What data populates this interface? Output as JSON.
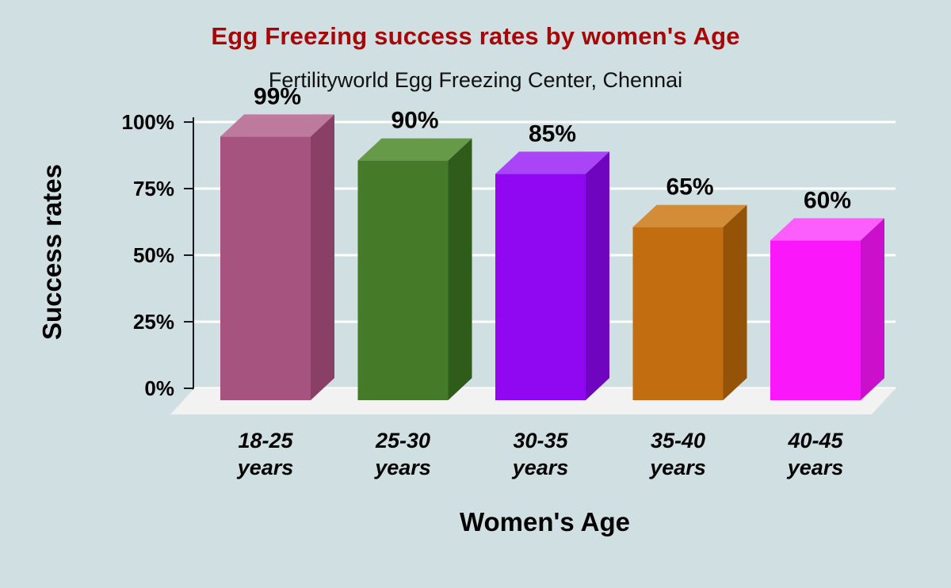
{
  "chart_data": {
    "type": "bar",
    "title": "Egg Freezing success rates by women's Age",
    "subtitle": "Fertilityworld Egg Freezing Center, Chennai",
    "xlabel": "Women's Age",
    "ylabel": "Success rates",
    "categories": [
      "18-25 years",
      "25-30 years",
      "30-35 years",
      "35-40 years",
      "40-45 years"
    ],
    "category_lines": [
      [
        "18-25",
        "years"
      ],
      [
        "25-30",
        "years"
      ],
      [
        "30-35",
        "years"
      ],
      [
        "35-40",
        "years"
      ],
      [
        "40-45",
        "years"
      ]
    ],
    "values": [
      99,
      90,
      85,
      65,
      60
    ],
    "value_labels": [
      "99%",
      "90%",
      "85%",
      "65%",
      "60%"
    ],
    "y_ticks": [
      "0%",
      "25%",
      "50%",
      "75%",
      "100%"
    ],
    "ylim": [
      0,
      100
    ],
    "grid": true,
    "legend": "none",
    "background_color": "#cfdfe2",
    "title_color": "#a80606",
    "text_color": "#000000",
    "gridline_color": "#ffffff",
    "axis_line_color": "#1a1a1a",
    "floor_color": "#f2f2f2",
    "bar_colors": [
      {
        "front": "#a65380",
        "top": "#bd7a9c",
        "side": "#8a3f66"
      },
      {
        "front": "#447a28",
        "top": "#679a48",
        "side": "#2f5c1b"
      },
      {
        "front": "#9007f2",
        "top": "#a945f7",
        "side": "#7005c0"
      },
      {
        "front": "#c16d10",
        "top": "#d38c38",
        "side": "#955307"
      },
      {
        "front": "#fa18fa",
        "top": "#fb5efb",
        "side": "#cb10cb"
      }
    ]
  }
}
